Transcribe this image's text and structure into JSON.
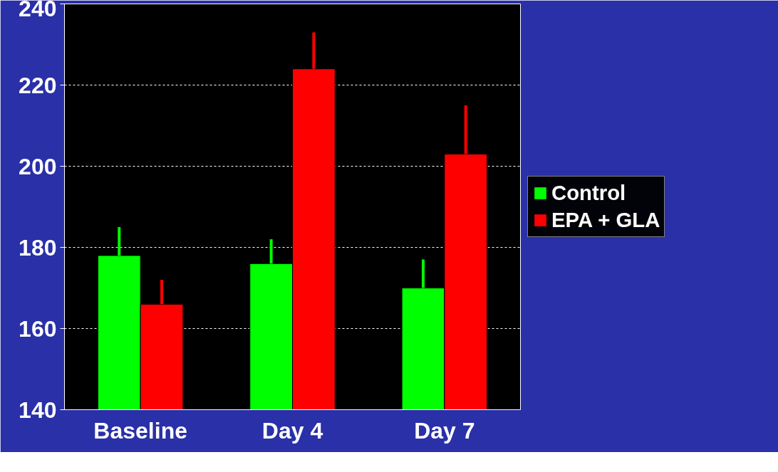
{
  "chart_data": {
    "type": "bar",
    "categories": [
      "Baseline",
      "Day 4",
      "Day 7"
    ],
    "series": [
      {
        "name": "Control",
        "color": "#00ff00",
        "values": [
          178,
          176,
          170
        ],
        "errors": [
          [
            178,
            185
          ],
          [
            176,
            182
          ],
          [
            170,
            177
          ]
        ]
      },
      {
        "name": "EPA + GLA",
        "color": "#ff0000",
        "values": [
          166,
          224,
          203
        ],
        "errors": [
          [
            166,
            172
          ],
          [
            224,
            233
          ],
          [
            203,
            215
          ]
        ]
      }
    ],
    "ylim": [
      140,
      240
    ],
    "yticks": [
      140,
      160,
      180,
      200,
      220,
      240
    ],
    "grid": "y",
    "legend": "right"
  }
}
